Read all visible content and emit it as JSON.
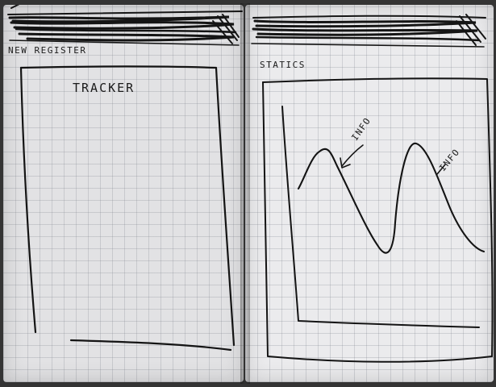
{
  "left_screen": {
    "header_label": "NEW REGISTER",
    "panel_title": "TRACKER"
  },
  "right_screen": {
    "header_label": "STATICS",
    "chart_annotations": {
      "first_peak": "INFO",
      "second_peak": "INFO"
    }
  },
  "colors": {
    "paper": "#e6e6e8",
    "grid_lines": "#787d87",
    "ink": "#141414",
    "table_surface": "#343434"
  }
}
